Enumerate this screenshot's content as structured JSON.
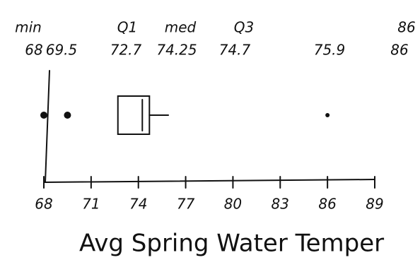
{
  "chart_data": {
    "type": "box",
    "x_label": "Avg Spring Water Temper",
    "summary": [
      {
        "label": "min",
        "value": 68
      },
      {
        "value": 69.5
      },
      {
        "label": "Q1",
        "value": 72.7
      },
      {
        "label": "med",
        "value": 74.25
      },
      {
        "label": "Q3",
        "value": 74.7
      },
      {
        "value": 75.9
      },
      {
        "label": "86",
        "value": 86
      }
    ],
    "xlim": [
      68,
      89
    ],
    "xticks": [
      68,
      71,
      74,
      77,
      80,
      83,
      86,
      89
    ]
  }
}
